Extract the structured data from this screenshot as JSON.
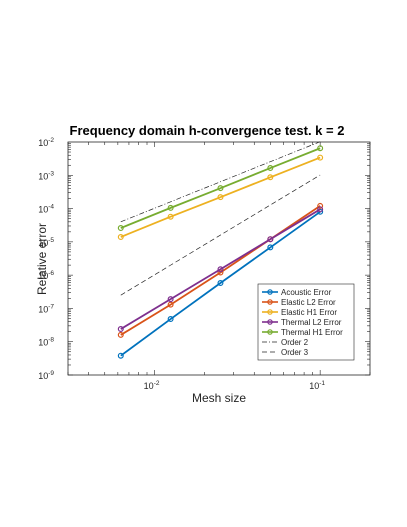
{
  "chart_data": {
    "type": "line",
    "title": "Frequency domain h-convergence test. k = 2",
    "xlabel": "Mesh size",
    "ylabel": "Relative error",
    "xscale": "log",
    "yscale": "log",
    "xlim": [
      0.003,
      0.2
    ],
    "ylim": [
      1e-09,
      0.01
    ],
    "x_ticks": [
      {
        "value": 0.01,
        "base": "10",
        "exp": "-2"
      },
      {
        "value": 0.1,
        "base": "10",
        "exp": "-1"
      }
    ],
    "y_ticks": [
      {
        "value": 1e-09,
        "base": "10",
        "exp": "-9"
      },
      {
        "value": 1e-08,
        "base": "10",
        "exp": "-8"
      },
      {
        "value": 1e-07,
        "base": "10",
        "exp": "-7"
      },
      {
        "value": 1e-06,
        "base": "10",
        "exp": "-6"
      },
      {
        "value": 1e-05,
        "base": "10",
        "exp": "-5"
      },
      {
        "value": 0.0001,
        "base": "10",
        "exp": "-4"
      },
      {
        "value": 0.001,
        "base": "10",
        "exp": "-3"
      },
      {
        "value": 0.01,
        "base": "10",
        "exp": "-2"
      }
    ],
    "grid": false,
    "legend_position": "bottom-right",
    "x": [
      0.00625,
      0.0125,
      0.025,
      0.05,
      0.1
    ],
    "series": [
      {
        "name": "Acoustic Error",
        "color": "#0072BD",
        "style": "solid-marker",
        "values": [
          3.8e-09,
          4.8e-08,
          5.8e-07,
          6.8e-06,
          8e-05
        ]
      },
      {
        "name": "Elastic L2 Error",
        "color": "#D95319",
        "style": "solid-marker",
        "values": [
          1.6e-08,
          1.3e-07,
          1.2e-06,
          1.2e-05,
          0.00012
        ]
      },
      {
        "name": "Elastic H1 Error",
        "color": "#EDB120",
        "style": "solid-marker",
        "values": [
          1.4e-05,
          5.7e-05,
          0.00022,
          0.00087,
          0.0034
        ]
      },
      {
        "name": "Thermal L2 Error",
        "color": "#7E2F8E",
        "style": "solid-marker",
        "values": [
          2.4e-08,
          1.9e-07,
          1.5e-06,
          1.2e-05,
          9.5e-05
        ]
      },
      {
        "name": "Thermal H1 Error",
        "color": "#77AC30",
        "style": "solid-marker",
        "values": [
          2.6e-05,
          0.000105,
          0.00041,
          0.00165,
          0.0065
        ]
      },
      {
        "name": "Order 2",
        "color": "#262626",
        "style": "dashdot",
        "values": [
          4e-05,
          0.00016,
          0.00064,
          0.00256,
          0.0102
        ]
      },
      {
        "name": "Order 3",
        "color": "#262626",
        "style": "dashed",
        "values": [
          2.5e-07,
          2e-06,
          1.6e-05,
          0.000128,
          0.00102
        ]
      }
    ]
  }
}
